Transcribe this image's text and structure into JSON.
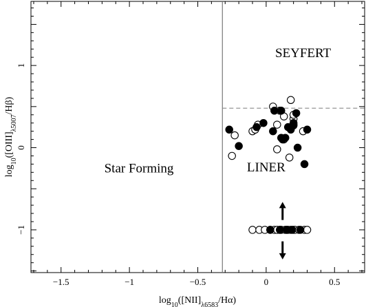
{
  "chart_data": {
    "type": "scatter",
    "xlabel": "log10([NII]λ6583/Hα)",
    "ylabel": "log10([OIII]λ5007/Hβ)",
    "xlim": [
      -1.72,
      0.72
    ],
    "ylim": [
      -1.52,
      1.78
    ],
    "x_ticks": [
      -1.5,
      -1,
      -0.5,
      0,
      0.5
    ],
    "x_tick_labels": [
      "−1.5",
      "−1",
      "−0.5",
      "0",
      "0.5"
    ],
    "y_ticks": [
      -1,
      0,
      1
    ],
    "y_tick_labels": [
      "−1",
      "0",
      "1"
    ],
    "grid": false,
    "vertical_line": {
      "x": -0.32
    },
    "horizontal_line": {
      "y": 0.48,
      "style": "dashed"
    },
    "annotations": [
      {
        "text": "SEYFERT",
        "x": 0.27,
        "y": 1.1
      },
      {
        "text": "Star Forming",
        "x": -0.93,
        "y": -0.3
      },
      {
        "text": "LINER",
        "x": 0.0,
        "y": -0.29
      }
    ],
    "arrows": [
      {
        "x": 0.12,
        "y_from": -0.88,
        "y_to": -0.66,
        "direction": "up"
      },
      {
        "x": 0.12,
        "y_from": -1.14,
        "y_to": -1.36,
        "direction": "down"
      }
    ],
    "series": [
      {
        "marker": "open-circle",
        "x": [
          -0.23,
          -0.25,
          -0.1,
          -0.08,
          -0.06,
          0.05,
          0.08,
          0.1,
          0.13,
          0.18,
          0.2,
          0.2,
          0.17,
          0.27,
          0.08,
          0.13,
          0.2,
          -0.1,
          -0.05,
          0.15,
          0.1,
          0.2,
          -0.01,
          0.03,
          0.06,
          0.08,
          0.11,
          0.14,
          0.16,
          0.18,
          0.21,
          0.24,
          0.28,
          0.3
        ],
        "y": [
          0.15,
          -0.1,
          0.2,
          0.22,
          0.28,
          0.5,
          0.28,
          0.45,
          0.38,
          0.58,
          0.28,
          0.35,
          -0.12,
          0.2,
          -0.02,
          0.1,
          0.4,
          -1.0,
          -1.0,
          -1.0,
          -1.0,
          -1.0,
          -1.0,
          -1.0,
          -1.0,
          -1.0,
          -1.0,
          -1.0,
          -1.0,
          -1.0,
          -1.0,
          -1.0,
          -1.0,
          -1.0
        ]
      },
      {
        "marker": "filled-circle",
        "x": [
          -0.27,
          -0.2,
          -0.07,
          -0.02,
          0.06,
          0.11,
          0.12,
          0.14,
          0.16,
          0.18,
          0.2,
          0.22,
          0.23,
          0.28,
          0.3,
          0.12,
          0.11,
          0.05,
          0.2,
          0.03,
          0.1,
          0.15,
          0.19,
          0.25
        ],
        "y": [
          0.22,
          0.02,
          0.25,
          0.3,
          0.45,
          0.45,
          0.1,
          0.12,
          0.25,
          0.22,
          0.3,
          0.42,
          0.0,
          -0.2,
          0.22,
          0.11,
          0.12,
          0.2,
          0.27,
          -1.0,
          -1.0,
          -1.0,
          -1.0,
          -1.0
        ]
      }
    ]
  }
}
